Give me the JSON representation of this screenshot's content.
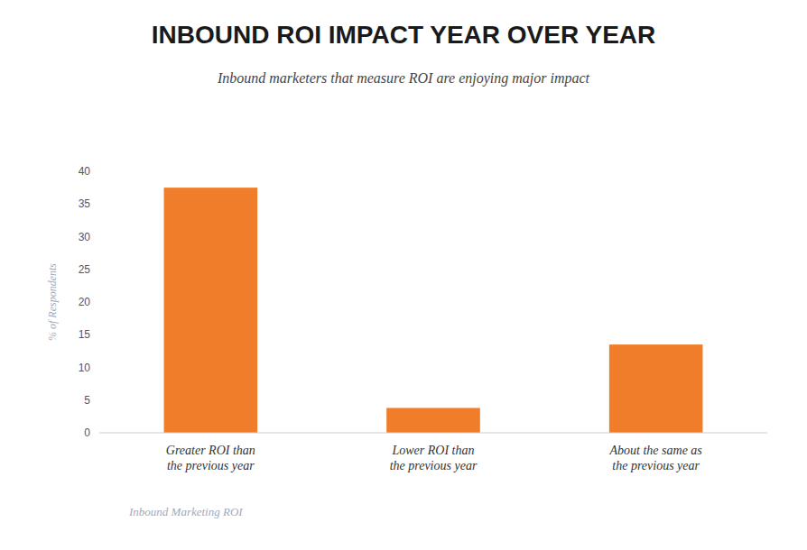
{
  "chart_data": {
    "type": "bar",
    "title": "INBOUND ROI IMPACT YEAR OVER YEAR",
    "subtitle": "Inbound marketers that measure ROI are enjoying major impact",
    "xlabel": "Inbound Marketing ROI",
    "ylabel": "% of Respondents",
    "categories": [
      "Greater ROI than\nthe previous year",
      "Lower ROI than\nthe previous year",
      "About the same as\nthe previous year"
    ],
    "values": [
      37.5,
      3.8,
      13.5
    ],
    "color": "#F07D2A",
    "ylim": [
      0,
      40
    ],
    "yticks": [
      0,
      5,
      10,
      15,
      20,
      25,
      30,
      35,
      40
    ],
    "grid": false
  }
}
